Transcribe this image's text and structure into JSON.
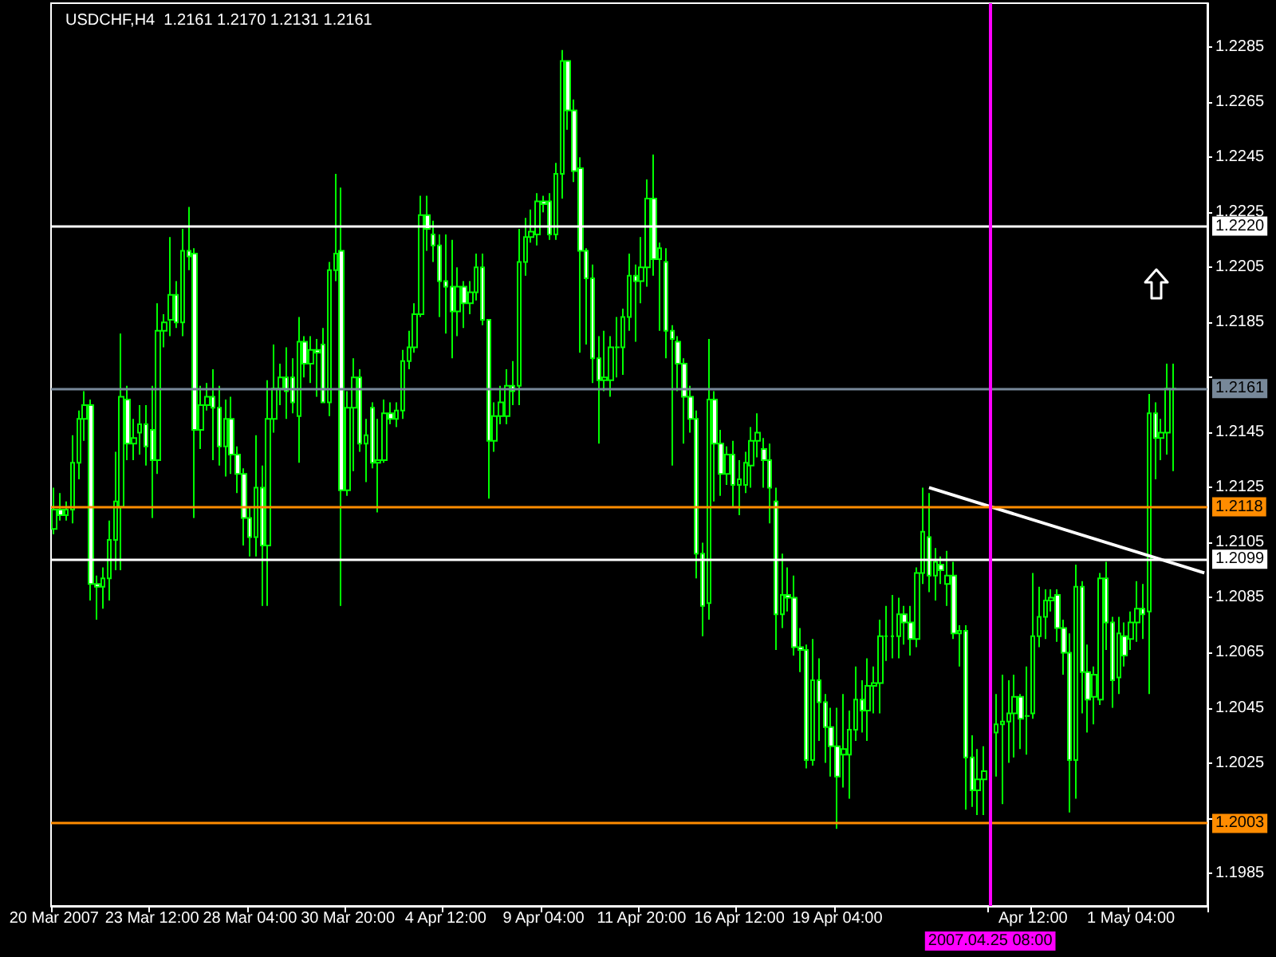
{
  "chart_data": {
    "type": "candlestick",
    "title": "USDCHF,H4  1.2161 1.2170 1.2131 1.2161",
    "color": "#00ff00",
    "categories": [
      "20 Mar 2007",
      null,
      null,
      null,
      null,
      null,
      null,
      null,
      null,
      null,
      null,
      null,
      null,
      null,
      null,
      null,
      "23 Mar 12:00",
      null,
      null,
      null,
      null,
      null,
      null,
      null,
      null,
      null,
      null,
      null,
      null,
      null,
      null,
      null,
      "28 Mar 04:00",
      null,
      null,
      null,
      null,
      null,
      null,
      null,
      null,
      null,
      null,
      null,
      null,
      null,
      null,
      null,
      "30 Mar 20:00",
      null,
      null,
      null,
      null,
      null,
      null,
      null,
      null,
      null,
      null,
      null,
      null,
      null,
      null,
      null,
      "4 Apr 12:00",
      null,
      null,
      null,
      null,
      null,
      null,
      null,
      null,
      null,
      null,
      null,
      null,
      null,
      null,
      null,
      "9 Apr 04:00",
      null,
      null,
      null,
      null,
      null,
      null,
      null,
      null,
      null,
      null,
      null,
      null,
      null,
      null,
      null,
      "11 Apr 20:00",
      null,
      null,
      null,
      null,
      null,
      null,
      null,
      null,
      null,
      null,
      null,
      null,
      null,
      null,
      null,
      "16 Apr 12:00",
      null,
      null,
      null,
      null,
      null,
      null,
      null,
      null,
      null,
      null,
      null,
      null,
      null,
      null,
      null,
      "19 Apr 04:00",
      null,
      null,
      null,
      null,
      null,
      null,
      null,
      null,
      null,
      null,
      null,
      null,
      null,
      null,
      null,
      null,
      null,
      null,
      null,
      null,
      null,
      null,
      null,
      null,
      "2007.04.25 08:00",
      null,
      null,
      null,
      null,
      null,
      null,
      "Apr 12:00",
      null,
      null,
      null,
      null,
      null,
      null,
      null,
      null,
      null,
      null,
      null,
      null,
      null,
      null,
      null,
      "1 May 04:00",
      null,
      null,
      null,
      null,
      null,
      null,
      null,
      null,
      null,
      null,
      null,
      null
    ],
    "ohlc": [
      [
        1.211,
        1.2125,
        1.2108,
        1.2117
      ],
      [
        1.2117,
        1.2123,
        1.2113,
        1.2115
      ],
      [
        1.2115,
        1.212,
        1.2113,
        1.2117
      ],
      [
        1.2117,
        1.2144,
        1.2112,
        1.2134
      ],
      [
        1.2134,
        1.2153,
        1.2128,
        1.215
      ],
      [
        1.215,
        1.216,
        1.2142,
        1.2155
      ],
      [
        1.2155,
        1.2157,
        1.2084,
        1.209
      ],
      [
        1.209,
        1.2093,
        1.2077,
        1.2089
      ],
      [
        1.2089,
        1.2096,
        1.2081,
        1.2092
      ],
      [
        1.2092,
        1.2113,
        1.2084,
        1.2106
      ],
      [
        1.2106,
        1.2138,
        1.2095,
        1.212
      ],
      [
        1.2118,
        1.2181,
        1.2095,
        1.2158
      ],
      [
        1.2157,
        1.2162,
        1.2135,
        1.2141
      ],
      [
        1.2141,
        1.215,
        1.2135,
        1.2143
      ],
      [
        1.2145,
        1.2155,
        1.2137,
        1.2148
      ],
      [
        1.2148,
        1.2155,
        1.2133,
        1.214
      ],
      [
        1.2146,
        1.2162,
        1.2114,
        1.2135
      ],
      [
        1.2135,
        1.2192,
        1.213,
        1.2182
      ],
      [
        1.2182,
        1.2188,
        1.2176,
        1.2185
      ],
      [
        1.2186,
        1.2216,
        1.218,
        1.2195
      ],
      [
        1.2195,
        1.22,
        1.2183,
        1.2185
      ],
      [
        1.2185,
        1.2219,
        1.218,
        1.2211
      ],
      [
        1.2211,
        1.2227,
        1.2204,
        1.2209
      ],
      [
        1.221,
        1.2212,
        1.2114,
        1.2146
      ],
      [
        1.2146,
        1.2162,
        1.2139,
        1.2155
      ],
      [
        1.2155,
        1.2163,
        1.2153,
        1.2158
      ],
      [
        1.2158,
        1.2168,
        1.2135,
        1.2154
      ],
      [
        1.2154,
        1.2162,
        1.2133,
        1.214
      ],
      [
        1.214,
        1.2157,
        1.2129,
        1.215
      ],
      [
        1.215,
        1.2158,
        1.213,
        1.2137
      ],
      [
        1.2137,
        1.214,
        1.2123,
        1.213
      ],
      [
        1.213,
        1.2132,
        1.2104,
        1.2114
      ],
      [
        1.2114,
        1.2118,
        1.21,
        1.2107
      ],
      [
        1.2107,
        1.2144,
        1.21,
        1.2125
      ],
      [
        1.2125,
        1.2133,
        1.2082,
        1.2104
      ],
      [
        1.2104,
        1.2164,
        1.2082,
        1.215
      ],
      [
        1.215,
        1.2177,
        1.2145,
        1.2161
      ],
      [
        1.2161,
        1.217,
        1.2155,
        1.2165
      ],
      [
        1.2165,
        1.2176,
        1.215,
        1.216
      ],
      [
        1.2165,
        1.2172,
        1.2152,
        1.2156
      ],
      [
        1.2151,
        1.2187,
        1.2134,
        1.2178
      ],
      [
        1.2178,
        1.218,
        1.2165,
        1.217
      ],
      [
        1.217,
        1.218,
        1.2163,
        1.2175
      ],
      [
        1.2175,
        1.2179,
        1.2158,
        1.2174
      ],
      [
        1.2177,
        1.2183,
        1.2156,
        1.2156
      ],
      [
        1.2156,
        1.2207,
        1.2151,
        1.2204
      ],
      [
        1.2204,
        1.2239,
        1.22,
        1.221
      ],
      [
        1.2211,
        1.2234,
        1.2082,
        1.2124
      ],
      [
        1.2124,
        1.216,
        1.2122,
        1.2154
      ],
      [
        1.2154,
        1.2172,
        1.2131,
        1.2165
      ],
      [
        1.2165,
        1.2168,
        1.2138,
        1.2141
      ],
      [
        1.2141,
        1.215,
        1.2127,
        1.2144
      ],
      [
        1.2154,
        1.2156,
        1.2132,
        1.2134
      ],
      [
        1.2134,
        1.215,
        1.2116,
        1.2135
      ],
      [
        1.2135,
        1.2157,
        1.2134,
        1.2152
      ],
      [
        1.2152,
        1.2156,
        1.2148,
        1.215
      ],
      [
        1.215,
        1.2156,
        1.2147,
        1.2153
      ],
      [
        1.2153,
        1.2175,
        1.215,
        1.2171
      ],
      [
        1.2171,
        1.2182,
        1.2168,
        1.2176
      ],
      [
        1.2176,
        1.2192,
        1.2174,
        1.2188
      ],
      [
        1.2188,
        1.2231,
        1.2187,
        1.2224
      ],
      [
        1.2224,
        1.2231,
        1.2211,
        1.2219
      ],
      [
        1.2217,
        1.2222,
        1.2207,
        1.2213
      ],
      [
        1.2213,
        1.2217,
        1.2187,
        1.22
      ],
      [
        1.22,
        1.2217,
        1.2181,
        1.2198
      ],
      [
        1.2198,
        1.2215,
        1.2172,
        1.2189
      ],
      [
        1.2189,
        1.2205,
        1.218,
        1.2198
      ],
      [
        1.2198,
        1.22,
        1.2183,
        1.2192
      ],
      [
        1.2192,
        1.22,
        1.2188,
        1.2196
      ],
      [
        1.2196,
        1.221,
        1.2193,
        1.2205
      ],
      [
        1.2205,
        1.221,
        1.2184,
        1.2186
      ],
      [
        1.2186,
        1.2186,
        1.2121,
        1.2142
      ],
      [
        1.2142,
        1.2156,
        1.2138,
        1.2151
      ],
      [
        1.2151,
        1.2162,
        1.2148,
        1.2156
      ],
      [
        1.2151,
        1.2168,
        1.2148,
        1.2162
      ],
      [
        1.2162,
        1.2171,
        1.2155,
        1.216
      ],
      [
        1.2162,
        1.2219,
        1.2155,
        1.2207
      ],
      [
        1.2207,
        1.2223,
        1.2202,
        1.2216
      ],
      [
        1.2216,
        1.2226,
        1.2214,
        1.2218
      ],
      [
        1.2217,
        1.2232,
        1.2213,
        1.2229
      ],
      [
        1.2229,
        1.2231,
        1.2225,
        1.2228
      ],
      [
        1.2229,
        1.2232,
        1.2215,
        1.2217
      ],
      [
        1.2217,
        1.2243,
        1.2215,
        1.2239
      ],
      [
        1.2239,
        1.2284,
        1.223,
        1.228
      ],
      [
        1.228,
        1.228,
        1.2255,
        1.2262
      ],
      [
        1.2262,
        1.2266,
        1.2236,
        1.224
      ],
      [
        1.2241,
        1.2245,
        1.2174,
        1.2211
      ],
      [
        1.2211,
        1.2212,
        1.2177,
        1.2201
      ],
      [
        1.2201,
        1.2206,
        1.2163,
        1.2172
      ],
      [
        1.2172,
        1.218,
        1.2141,
        1.2164
      ],
      [
        1.2164,
        1.2182,
        1.216,
        1.2165
      ],
      [
        1.2164,
        1.218,
        1.2158,
        1.2176
      ],
      [
        1.2176,
        1.2187,
        1.2165,
        1.2176
      ],
      [
        1.2176,
        1.219,
        1.2166,
        1.2187
      ],
      [
        1.2187,
        1.221,
        1.2182,
        1.2202
      ],
      [
        1.2202,
        1.2206,
        1.2178,
        1.22
      ],
      [
        1.22,
        1.2216,
        1.2192,
        1.2205
      ],
      [
        1.2205,
        1.2237,
        1.2198,
        1.223
      ],
      [
        1.223,
        1.2246,
        1.2202,
        1.2208
      ],
      [
        1.2208,
        1.2214,
        1.2182,
        1.2212
      ],
      [
        1.2207,
        1.2212,
        1.2172,
        1.2182
      ],
      [
        1.2182,
        1.2184,
        1.2133,
        1.2179
      ],
      [
        1.2178,
        1.218,
        1.216,
        1.217
      ],
      [
        1.217,
        1.2172,
        1.2141,
        1.2158
      ],
      [
        1.2158,
        1.2162,
        1.2145,
        1.215
      ],
      [
        1.215,
        1.2153,
        1.2092,
        1.2101
      ],
      [
        1.2101,
        1.2105,
        1.2071,
        1.2082
      ],
      [
        1.2083,
        1.2179,
        1.2077,
        1.2157
      ],
      [
        1.2157,
        1.216,
        1.212,
        1.2141
      ],
      [
        1.2141,
        1.2146,
        1.2122,
        1.213
      ],
      [
        1.213,
        1.214,
        1.2126,
        1.2137
      ],
      [
        1.2137,
        1.2142,
        1.2118,
        1.2126
      ],
      [
        1.2126,
        1.2135,
        1.2115,
        1.2128
      ],
      [
        1.2126,
        1.2138,
        1.2123,
        1.2134
      ],
      [
        1.2133,
        1.2147,
        1.2125,
        1.2142
      ],
      [
        1.2142,
        1.2152,
        1.2136,
        1.2145
      ],
      [
        1.2139,
        1.2143,
        1.2125,
        1.2135
      ],
      [
        1.2135,
        1.2141,
        1.2112,
        1.2125
      ],
      [
        1.212,
        1.2125,
        1.2066,
        1.2079
      ],
      [
        1.2079,
        1.2101,
        1.2074,
        1.2086
      ],
      [
        1.2086,
        1.2096,
        1.208,
        1.2085
      ],
      [
        1.2085,
        1.2093,
        1.2064,
        1.2067
      ],
      [
        1.2067,
        1.2074,
        1.2058,
        1.2066
      ],
      [
        1.2066,
        1.2068,
        1.2023,
        1.2026
      ],
      [
        1.2026,
        1.207,
        1.2024,
        1.2055
      ],
      [
        1.2055,
        1.2063,
        1.2033,
        1.2047
      ],
      [
        1.2047,
        1.205,
        1.2025,
        1.2038
      ],
      [
        1.2038,
        1.2045,
        1.202,
        1.2031
      ],
      [
        1.2031,
        1.2045,
        1.2001,
        1.202
      ],
      [
        1.2028,
        1.205,
        1.2016,
        1.203
      ],
      [
        1.2028,
        1.2044,
        1.2012,
        1.2037
      ],
      [
        1.2037,
        1.206,
        1.2033,
        1.2048
      ],
      [
        1.2048,
        1.2055,
        1.2036,
        1.2044
      ],
      [
        1.2044,
        1.2063,
        1.2033,
        1.2053
      ],
      [
        1.2053,
        1.206,
        1.2043,
        1.2054
      ],
      [
        1.2054,
        1.2077,
        1.2043,
        1.2071
      ],
      [
        1.2071,
        1.2082,
        1.2062,
        1.2071
      ],
      [
        1.2071,
        1.2086,
        1.2063,
        1.2071
      ],
      [
        1.2071,
        1.2085,
        1.2063,
        1.2079
      ],
      [
        1.2079,
        1.2082,
        1.2068,
        1.2076
      ],
      [
        1.2076,
        1.2082,
        1.2064,
        1.207
      ],
      [
        1.207,
        1.2096,
        1.2067,
        1.2094
      ],
      [
        1.2094,
        1.2125,
        1.209,
        1.2109
      ],
      [
        1.2107,
        1.2123,
        1.2087,
        1.2093
      ],
      [
        1.2093,
        1.2103,
        1.2084,
        1.2098
      ],
      [
        1.2097,
        1.21,
        1.209,
        1.2095
      ],
      [
        1.209,
        1.2102,
        1.2082,
        1.2093
      ],
      [
        1.2093,
        1.2098,
        1.207,
        1.2072
      ],
      [
        1.2072,
        1.2075,
        1.206,
        1.2073
      ],
      [
        1.2073,
        1.2075,
        1.2008,
        1.2027
      ],
      [
        1.2027,
        1.2035,
        1.2009,
        1.2015
      ],
      [
        1.2015,
        1.203,
        1.2006,
        1.2019
      ],
      [
        1.2019,
        1.2031,
        1.2006,
        1.2022
      ],
      null,
      [
        1.2036,
        1.205,
        1.202,
        1.2039
      ],
      [
        1.2039,
        1.2057,
        1.201,
        1.204
      ],
      [
        1.204,
        1.2055,
        1.2025,
        1.2043
      ],
      [
        1.2043,
        1.2057,
        1.2027,
        1.2049
      ],
      [
        1.2049,
        1.205,
        1.203,
        1.2041
      ],
      [
        1.2042,
        1.206,
        1.2028,
        1.2042
      ],
      [
        1.2043,
        1.2094,
        1.2041,
        1.2071
      ],
      [
        1.2071,
        1.2089,
        1.2067,
        1.2078
      ],
      [
        1.2078,
        1.2088,
        1.207,
        1.2084
      ],
      [
        1.2084,
        1.2088,
        1.208,
        1.2085
      ],
      [
        1.2086,
        1.2088,
        1.2069,
        1.2074
      ],
      [
        1.2074,
        1.2077,
        1.2057,
        1.2065
      ],
      [
        1.2065,
        1.2072,
        1.2007,
        1.2026
      ],
      [
        1.2026,
        1.2097,
        1.2012,
        1.2089
      ],
      [
        1.2089,
        1.2091,
        1.2043,
        1.2058
      ],
      [
        1.2058,
        1.2068,
        1.2036,
        1.2048
      ],
      [
        1.2049,
        1.206,
        1.2039,
        1.2057
      ],
      [
        1.2048,
        1.2094,
        1.2046,
        1.2092
      ],
      [
        1.2092,
        1.2098,
        1.2066,
        1.2076
      ],
      [
        1.2076,
        1.2078,
        1.2045,
        1.2055
      ],
      [
        1.2056,
        1.2078,
        1.205,
        1.2072
      ],
      [
        1.2071,
        1.2076,
        1.206,
        1.2064
      ],
      [
        1.207,
        1.208,
        1.2066,
        1.2076
      ],
      [
        1.2076,
        1.2091,
        1.2069,
        1.2081
      ],
      [
        1.2081,
        1.209,
        1.207,
        1.2079
      ],
      [
        1.208,
        1.2159,
        1.205,
        1.2152
      ],
      [
        1.2152,
        1.2156,
        1.2128,
        1.2143
      ],
      [
        1.2143,
        1.215,
        1.2135,
        1.2145
      ],
      [
        1.2145,
        1.217,
        1.2137,
        1.2161
      ],
      [
        1.2161,
        1.217,
        1.2131,
        1.2161
      ],
      null,
      null,
      null,
      null,
      null
    ],
    "series": [
      {
        "type": "line",
        "color": "#ffffff",
        "values": [
          null,
          null,
          null,
          null,
          null,
          null,
          null,
          null,
          null,
          null,
          null,
          null,
          null,
          null,
          null,
          null,
          null,
          null,
          null,
          null,
          null,
          null,
          null,
          null,
          null,
          null,
          null,
          null,
          null,
          null,
          null,
          null,
          null,
          null,
          null,
          null,
          null,
          null,
          null,
          null,
          null,
          null,
          null,
          null,
          null,
          null,
          null,
          null,
          null,
          null,
          null,
          null,
          null,
          null,
          null,
          null,
          null,
          null,
          null,
          null,
          null,
          null,
          null,
          null,
          null,
          null,
          null,
          null,
          null,
          null,
          null,
          null,
          null,
          null,
          null,
          null,
          null,
          null,
          null,
          null,
          null,
          null,
          null,
          null,
          null,
          null,
          null,
          null,
          null,
          null,
          null,
          null,
          null,
          null,
          null,
          null,
          null,
          null,
          null,
          null,
          null,
          null,
          null,
          null,
          null,
          null,
          null,
          null,
          null,
          null,
          null,
          null,
          null,
          null,
          null,
          null,
          null,
          null,
          null,
          null,
          null,
          null,
          null,
          null,
          null,
          null,
          null,
          null,
          null,
          null,
          null,
          null,
          null,
          null,
          null,
          null,
          null,
          null,
          null,
          null,
          null,
          null,
          null,
          1.2125,
          null,
          null,
          null,
          null,
          null,
          null,
          null,
          null,
          null,
          null,
          null,
          null,
          null,
          null,
          null,
          null,
          null,
          null,
          null,
          null,
          null,
          null,
          null,
          null,
          null,
          null,
          null,
          null,
          null,
          null,
          null,
          null,
          null,
          null,
          null,
          null,
          null,
          null,
          null,
          null,
          null,
          null,
          null,
          null,
          1.2094
        ]
      }
    ],
    "ylim": [
      1.1973,
      1.2301
    ],
    "yticks": [
      1.1985,
      {
        "value": 1.2005,
        "label": null
      },
      1.2025,
      1.2045,
      1.2065,
      1.2085,
      1.2105,
      1.2125,
      1.2145,
      {
        "value": 1.2165,
        "label": null
      },
      1.2185,
      1.2205,
      1.2225,
      1.2245,
      1.2265,
      1.2285
    ],
    "ref_lines": [
      {
        "axis": "y",
        "value": 1.222,
        "label": "1.2220",
        "color": "#ffffff"
      },
      {
        "axis": "y",
        "value": 1.2161,
        "label": "1.2161",
        "color": "#778899"
      },
      {
        "axis": "y",
        "value": 1.2118,
        "label": "1.2118",
        "color": "#ff8c00"
      },
      {
        "axis": "y",
        "value": 1.2099,
        "label": "1.2099",
        "color": "#ffffff"
      },
      {
        "axis": "y",
        "value": 1.2003,
        "label": "1.2003",
        "color": "#ff8c00"
      },
      {
        "axis": "x",
        "value": "2007.04.25 08:00",
        "color": "#ff00ff"
      }
    ]
  }
}
